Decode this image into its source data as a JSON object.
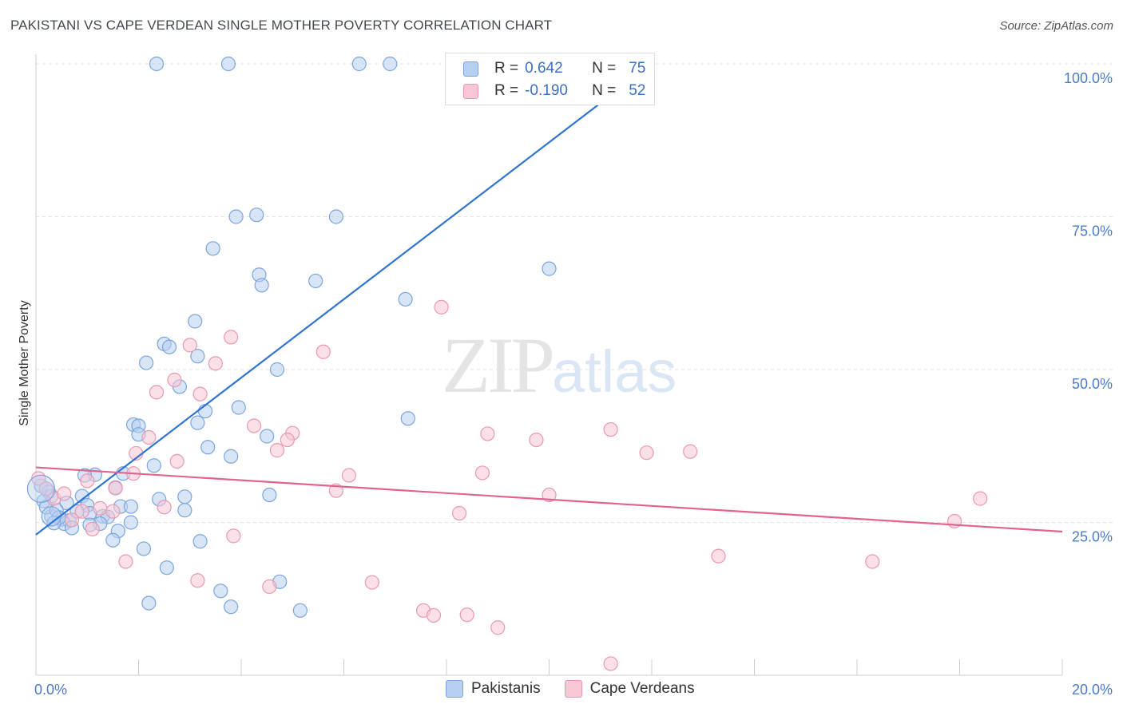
{
  "title": "PAKISTANI VS CAPE VERDEAN SINGLE MOTHER POVERTY CORRELATION CHART",
  "source": "Source: ZipAtlas.com",
  "watermark": {
    "zip": "ZIP",
    "atlas": "atlas"
  },
  "legend": {
    "series": [
      {
        "r_label": "R =",
        "r": "0.642",
        "n_label": "N =",
        "n": "75",
        "fill": "#b8d0f0",
        "stroke": "#7aa5dd"
      },
      {
        "r_label": "R =",
        "r": "-0.190",
        "n_label": "N =",
        "n": "52",
        "fill": "#f8c6d4",
        "stroke": "#ea98b0"
      }
    ]
  },
  "bottom_legend": [
    {
      "name": "Pakistanis",
      "fill": "#b8d0f0",
      "stroke": "#7aa5dd"
    },
    {
      "name": "Cape Verdeans",
      "fill": "#f8c6d4",
      "stroke": "#ea98b0"
    }
  ],
  "chart_data": {
    "type": "scatter",
    "title": "PAKISTANI VS CAPE VERDEAN SINGLE MOTHER POVERTY CORRELATION CHART",
    "ylabel": "Single Mother Poverty",
    "xlabel": "",
    "xlim": [
      0,
      20
    ],
    "ylim": [
      0,
      102
    ],
    "x_ticks": [
      {
        "value": 0,
        "label": "0.0%"
      },
      {
        "value": 20,
        "label": "20.0%"
      }
    ],
    "y_ticks": [
      {
        "value": 25,
        "label": "25.0%"
      },
      {
        "value": 50,
        "label": "50.0%"
      },
      {
        "value": 75,
        "label": "75.0%"
      },
      {
        "value": 100,
        "label": "100.0%"
      }
    ],
    "grid": true,
    "series": [
      {
        "name": "Pakistanis",
        "color": "#7aa5dd",
        "fill": "#b8d0f0",
        "trend": {
          "x": [
            0,
            12
          ],
          "y": [
            23,
            100
          ],
          "color": "#2f74d0"
        },
        "points": [
          [
            2.35,
            100
          ],
          [
            3.75,
            100
          ],
          [
            6.3,
            100
          ],
          [
            6.9,
            100
          ],
          [
            9.45,
            100
          ],
          [
            3.9,
            75
          ],
          [
            4.3,
            75.3
          ],
          [
            5.85,
            75
          ],
          [
            3.45,
            69.8
          ],
          [
            10.0,
            66.5
          ],
          [
            4.35,
            65.5
          ],
          [
            4.4,
            63.8
          ],
          [
            5.45,
            64.5
          ],
          [
            7.2,
            61.5
          ],
          [
            3.1,
            57.9
          ],
          [
            2.5,
            54.2
          ],
          [
            2.6,
            53.7
          ],
          [
            3.15,
            52.2
          ],
          [
            2.15,
            51.1
          ],
          [
            4.7,
            50.0
          ],
          [
            2.8,
            47.2
          ],
          [
            3.3,
            43.2
          ],
          [
            3.95,
            43.8
          ],
          [
            7.25,
            42.0
          ],
          [
            1.9,
            41.0
          ],
          [
            2.0,
            40.8
          ],
          [
            3.15,
            41.3
          ],
          [
            2.0,
            39.4
          ],
          [
            4.5,
            39.1
          ],
          [
            3.35,
            37.3
          ],
          [
            3.8,
            35.8
          ],
          [
            2.3,
            34.3
          ],
          [
            1.7,
            33.0
          ],
          [
            1.15,
            32.8
          ],
          [
            0.95,
            32.7
          ],
          [
            1.55,
            30.7
          ],
          [
            2.4,
            28.8
          ],
          [
            2.9,
            29.2
          ],
          [
            4.55,
            29.5
          ],
          [
            0.1,
            31.0
          ],
          [
            0.25,
            30.0
          ],
          [
            0.3,
            29.3
          ],
          [
            0.9,
            29.3
          ],
          [
            0.6,
            28.2
          ],
          [
            1.0,
            27.8
          ],
          [
            1.65,
            27.6
          ],
          [
            1.85,
            27.6
          ],
          [
            2.9,
            27.0
          ],
          [
            1.05,
            26.5
          ],
          [
            0.3,
            26.0
          ],
          [
            0.5,
            25.5
          ],
          [
            0.65,
            25.3
          ],
          [
            0.55,
            24.8
          ],
          [
            0.7,
            24.1
          ],
          [
            1.3,
            26.0
          ],
          [
            1.4,
            25.9
          ],
          [
            1.25,
            24.8
          ],
          [
            1.85,
            25.0
          ],
          [
            1.6,
            23.6
          ],
          [
            1.5,
            22.1
          ],
          [
            3.2,
            21.9
          ],
          [
            2.1,
            20.7
          ],
          [
            2.55,
            17.6
          ],
          [
            4.75,
            15.3
          ],
          [
            3.6,
            13.8
          ],
          [
            2.2,
            11.8
          ],
          [
            3.8,
            11.2
          ],
          [
            5.15,
            10.6
          ],
          [
            0.15,
            28.5
          ],
          [
            0.2,
            27.5
          ],
          [
            0.4,
            27.0
          ],
          [
            0.8,
            26.8
          ],
          [
            0.45,
            25.8
          ],
          [
            0.35,
            24.9
          ],
          [
            1.05,
            24.6
          ]
        ]
      },
      {
        "name": "Cape Verdeans",
        "color": "#ea98b0",
        "fill": "#f8c6d4",
        "trend": {
          "x": [
            0,
            20
          ],
          "y": [
            34,
            23.5
          ],
          "color": "#e0648c"
        },
        "points": [
          [
            7.9,
            60.2
          ],
          [
            3.8,
            55.3
          ],
          [
            3.0,
            54.0
          ],
          [
            5.6,
            52.9
          ],
          [
            3.5,
            51.0
          ],
          [
            2.7,
            48.3
          ],
          [
            2.35,
            46.3
          ],
          [
            3.2,
            46.0
          ],
          [
            4.25,
            40.8
          ],
          [
            5.0,
            39.6
          ],
          [
            8.8,
            39.5
          ],
          [
            11.2,
            40.2
          ],
          [
            9.75,
            38.5
          ],
          [
            4.9,
            38.5
          ],
          [
            4.7,
            36.8
          ],
          [
            2.2,
            38.9
          ],
          [
            1.95,
            36.3
          ],
          [
            11.9,
            36.4
          ],
          [
            12.75,
            36.6
          ],
          [
            2.75,
            35.0
          ],
          [
            8.7,
            33.1
          ],
          [
            6.1,
            32.7
          ],
          [
            1.0,
            31.8
          ],
          [
            1.55,
            30.6
          ],
          [
            5.85,
            30.2
          ],
          [
            0.35,
            28.9
          ],
          [
            1.25,
            27.3
          ],
          [
            1.5,
            26.8
          ],
          [
            2.5,
            27.5
          ],
          [
            10.0,
            29.5
          ],
          [
            18.4,
            28.9
          ],
          [
            8.25,
            26.5
          ],
          [
            0.9,
            26.8
          ],
          [
            1.1,
            23.9
          ],
          [
            3.85,
            22.8
          ],
          [
            17.9,
            25.2
          ],
          [
            1.75,
            18.6
          ],
          [
            13.3,
            19.5
          ],
          [
            16.3,
            18.6
          ],
          [
            3.15,
            15.5
          ],
          [
            4.55,
            14.5
          ],
          [
            6.55,
            15.2
          ],
          [
            7.55,
            10.6
          ],
          [
            7.75,
            9.8
          ],
          [
            8.4,
            9.9
          ],
          [
            9.0,
            7.8
          ],
          [
            11.2,
            1.9
          ],
          [
            0.05,
            32.2
          ],
          [
            0.2,
            30.5
          ],
          [
            0.55,
            29.7
          ],
          [
            0.7,
            25.4
          ],
          [
            1.9,
            33.0
          ]
        ]
      }
    ]
  }
}
